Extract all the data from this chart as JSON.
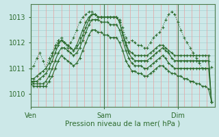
{
  "background_color": "#cce8e8",
  "plot_bg_color": "#cce8e8",
  "grid_color_v": "#e8a0a0",
  "grid_color_h": "#a8d0d0",
  "line_color": "#2d6b2d",
  "marker": "+",
  "xlabel": "Pression niveau de la mer( hPa )",
  "xtick_labels": [
    "Ven",
    "Sam",
    "Dim"
  ],
  "xtick_positions": [
    0.0,
    0.4,
    0.8
  ],
  "ylim": [
    1009.5,
    1013.5
  ],
  "yticks": [
    1010,
    1011,
    1012,
    1013
  ],
  "series": [
    {
      "x": [
        0.0,
        0.017,
        0.033,
        0.05,
        0.067,
        0.083,
        0.1,
        0.117,
        0.133,
        0.15,
        0.167,
        0.183,
        0.2,
        0.217,
        0.233,
        0.25,
        0.267,
        0.283,
        0.3,
        0.317,
        0.333,
        0.35,
        0.367,
        0.383,
        0.4,
        0.417,
        0.433,
        0.45,
        0.467,
        0.483,
        0.5,
        0.517,
        0.533,
        0.55,
        0.567,
        0.583,
        0.6,
        0.617,
        0.633,
        0.65,
        0.667,
        0.683,
        0.7,
        0.717,
        0.733,
        0.75,
        0.767,
        0.783,
        0.8,
        0.817,
        0.833,
        0.85,
        0.867,
        0.883,
        0.9,
        0.917,
        0.933,
        0.95,
        0.967,
        0.983
      ],
      "y": [
        1011.0,
        1011.1,
        1011.4,
        1011.6,
        1011.3,
        1011.0,
        1011.4,
        1011.6,
        1011.9,
        1012.1,
        1012.2,
        1012.0,
        1011.8,
        1012.0,
        1012.2,
        1012.5,
        1012.8,
        1013.0,
        1013.1,
        1013.2,
        1013.2,
        1013.1,
        1013.0,
        1013.0,
        1013.0,
        1013.0,
        1013.0,
        1013.0,
        1013.0,
        1012.9,
        1012.6,
        1012.2,
        1012.0,
        1012.1,
        1012.0,
        1011.9,
        1011.9,
        1011.8,
        1011.8,
        1012.0,
        1012.2,
        1012.3,
        1012.4,
        1012.6,
        1012.9,
        1013.1,
        1013.2,
        1013.1,
        1012.8,
        1012.5,
        1012.2,
        1012.0,
        1011.8,
        1011.6,
        1011.4,
        1011.2,
        1011.0,
        1011.0,
        1011.0,
        1011.05
      ],
      "style": "dotted"
    },
    {
      "x": [
        0.0,
        0.017,
        0.033,
        0.05,
        0.067,
        0.083,
        0.1,
        0.117,
        0.133,
        0.15,
        0.167,
        0.183,
        0.2,
        0.217,
        0.233,
        0.25,
        0.267,
        0.283,
        0.3,
        0.317,
        0.333,
        0.35,
        0.367,
        0.383,
        0.4,
        0.417,
        0.433,
        0.45,
        0.467,
        0.483,
        0.5,
        0.517,
        0.533,
        0.55,
        0.567,
        0.583,
        0.6,
        0.617,
        0.633,
        0.65,
        0.667,
        0.683,
        0.7,
        0.717,
        0.733,
        0.75,
        0.767,
        0.783,
        0.8,
        0.817,
        0.833,
        0.85,
        0.867,
        0.883,
        0.9,
        0.917,
        0.933,
        0.95,
        0.967,
        0.983
      ],
      "y": [
        1010.6,
        1010.6,
        1010.7,
        1010.8,
        1010.9,
        1011.0,
        1011.2,
        1011.5,
        1011.8,
        1012.0,
        1012.1,
        1012.0,
        1011.9,
        1011.8,
        1011.7,
        1011.9,
        1012.2,
        1012.5,
        1012.8,
        1013.0,
        1013.1,
        1013.1,
        1013.0,
        1013.0,
        1013.0,
        1013.0,
        1013.0,
        1013.0,
        1013.0,
        1012.8,
        1012.4,
        1012.0,
        1011.7,
        1011.6,
        1011.5,
        1011.5,
        1011.5,
        1011.5,
        1011.5,
        1011.6,
        1011.7,
        1011.8,
        1011.9,
        1011.9,
        1011.8,
        1011.7,
        1011.6,
        1011.5,
        1011.5,
        1011.5,
        1011.5,
        1011.5,
        1011.5,
        1011.5,
        1011.5,
        1011.5,
        1011.5,
        1011.5,
        1011.5,
        1009.7
      ],
      "style": "solid"
    },
    {
      "x": [
        0.0,
        0.017,
        0.033,
        0.05,
        0.067,
        0.083,
        0.1,
        0.117,
        0.133,
        0.15,
        0.167,
        0.183,
        0.2,
        0.217,
        0.233,
        0.25,
        0.267,
        0.283,
        0.3,
        0.317,
        0.333,
        0.35,
        0.367,
        0.383,
        0.4,
        0.417,
        0.433,
        0.45,
        0.467,
        0.483,
        0.5,
        0.517,
        0.533,
        0.55,
        0.567,
        0.583,
        0.6,
        0.617,
        0.633,
        0.65,
        0.667,
        0.683,
        0.7,
        0.717,
        0.733,
        0.75,
        0.767,
        0.783,
        0.8,
        0.817,
        0.833,
        0.85,
        0.867,
        0.883,
        0.9,
        0.917,
        0.933,
        0.95,
        0.967,
        0.983
      ],
      "y": [
        1010.5,
        1010.5,
        1010.5,
        1010.6,
        1010.7,
        1010.8,
        1011.0,
        1011.3,
        1011.6,
        1011.9,
        1012.1,
        1012.0,
        1011.9,
        1011.8,
        1011.7,
        1011.8,
        1012.0,
        1012.3,
        1012.6,
        1012.9,
        1013.1,
        1013.1,
        1013.0,
        1013.0,
        1013.0,
        1013.0,
        1013.0,
        1013.0,
        1013.0,
        1012.8,
        1012.3,
        1011.9,
        1011.6,
        1011.4,
        1011.3,
        1011.3,
        1011.3,
        1011.3,
        1011.3,
        1011.4,
        1011.5,
        1011.6,
        1011.7,
        1011.8,
        1011.7,
        1011.6,
        1011.4,
        1011.3,
        1011.3,
        1011.3,
        1011.3,
        1011.3,
        1011.3,
        1011.3,
        1011.3,
        1011.3,
        1011.3,
        1011.3,
        1011.3,
        1009.7
      ],
      "style": "solid"
    },
    {
      "x": [
        0.0,
        0.017,
        0.033,
        0.05,
        0.067,
        0.083,
        0.1,
        0.117,
        0.133,
        0.15,
        0.167,
        0.183,
        0.2,
        0.217,
        0.233,
        0.25,
        0.267,
        0.283,
        0.3,
        0.317,
        0.333,
        0.35,
        0.367,
        0.383,
        0.4,
        0.417,
        0.433,
        0.45,
        0.467,
        0.483,
        0.5,
        0.517,
        0.533,
        0.55,
        0.567,
        0.583,
        0.6,
        0.617,
        0.633,
        0.65,
        0.667,
        0.683,
        0.7,
        0.717,
        0.733,
        0.75,
        0.767,
        0.783,
        0.8,
        0.817,
        0.833,
        0.85,
        0.867,
        0.883,
        0.9,
        0.917,
        0.933,
        0.95,
        0.967,
        0.983
      ],
      "y": [
        1010.5,
        1010.4,
        1010.4,
        1010.4,
        1010.4,
        1010.5,
        1010.7,
        1011.0,
        1011.3,
        1011.6,
        1011.8,
        1011.8,
        1011.7,
        1011.6,
        1011.5,
        1011.6,
        1011.8,
        1012.1,
        1012.4,
        1012.7,
        1012.9,
        1012.9,
        1012.9,
        1012.8,
        1012.8,
        1012.8,
        1012.7,
        1012.7,
        1012.7,
        1012.5,
        1012.1,
        1011.7,
        1011.4,
        1011.2,
        1011.1,
        1011.1,
        1011.1,
        1011.0,
        1011.0,
        1011.1,
        1011.2,
        1011.3,
        1011.4,
        1011.5,
        1011.4,
        1011.2,
        1011.1,
        1011.0,
        1011.0,
        1011.0,
        1011.0,
        1011.0,
        1011.0,
        1011.0,
        1011.0,
        1011.0,
        1011.0,
        1011.0,
        1011.0,
        1009.7
      ],
      "style": "solid"
    },
    {
      "x": [
        0.0,
        0.017,
        0.033,
        0.05,
        0.067,
        0.083,
        0.1,
        0.117,
        0.133,
        0.15,
        0.167,
        0.183,
        0.2,
        0.217,
        0.233,
        0.25,
        0.267,
        0.283,
        0.3,
        0.317,
        0.333,
        0.35,
        0.367,
        0.383,
        0.4,
        0.417,
        0.433,
        0.45,
        0.467,
        0.483,
        0.5,
        0.517,
        0.533,
        0.55,
        0.567,
        0.583,
        0.6,
        0.617,
        0.633,
        0.65,
        0.667,
        0.683,
        0.7,
        0.717,
        0.733,
        0.75,
        0.767,
        0.783,
        0.8,
        0.817,
        0.833,
        0.85,
        0.867,
        0.883,
        0.9,
        0.917,
        0.933,
        0.95,
        0.967,
        0.983
      ],
      "y": [
        1010.4,
        1010.3,
        1010.3,
        1010.3,
        1010.3,
        1010.3,
        1010.5,
        1010.7,
        1011.0,
        1011.3,
        1011.5,
        1011.4,
        1011.3,
        1011.2,
        1011.1,
        1011.2,
        1011.4,
        1011.7,
        1012.0,
        1012.3,
        1012.5,
        1012.5,
        1012.4,
        1012.4,
        1012.3,
        1012.3,
        1012.2,
        1012.2,
        1012.2,
        1012.0,
        1011.7,
        1011.3,
        1011.1,
        1010.9,
        1010.9,
        1010.8,
        1010.8,
        1010.7,
        1010.7,
        1010.8,
        1010.9,
        1011.0,
        1011.1,
        1011.1,
        1011.0,
        1010.9,
        1010.8,
        1010.8,
        1010.7,
        1010.7,
        1010.6,
        1010.6,
        1010.5,
        1010.5,
        1010.4,
        1010.4,
        1010.3,
        1010.3,
        1010.2,
        1009.7
      ],
      "style": "solid"
    }
  ]
}
